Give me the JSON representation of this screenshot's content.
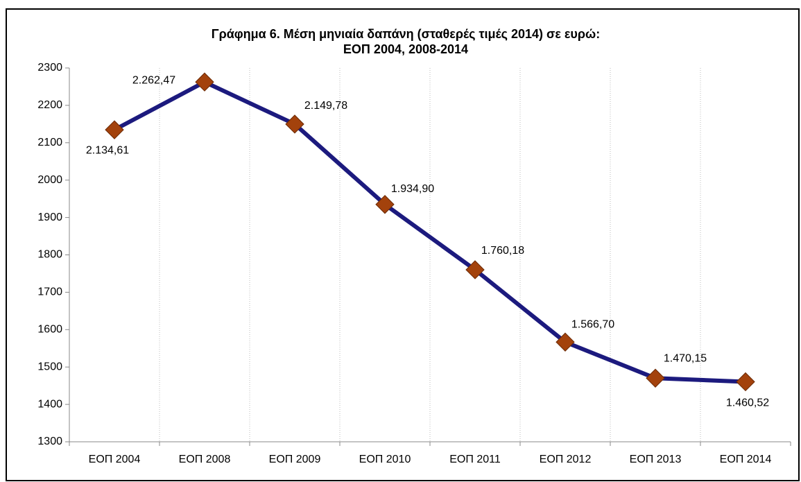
{
  "chart_data": {
    "type": "line",
    "title": [
      "Γράφημα 6. Μέση μηνιαία δαπάνη (σταθερές τιμές 2014) σε ευρώ:",
      "ΕΟΠ 2004, 2008-2014"
    ],
    "categories": [
      "ΕΟΠ 2004",
      "ΕΟΠ 2008",
      "ΕΟΠ 2009",
      "ΕΟΠ 2010",
      "ΕΟΠ 2011",
      "ΕΟΠ 2012",
      "ΕΟΠ 2013",
      "ΕΟΠ 2014"
    ],
    "values": [
      2134.61,
      2262.47,
      2149.78,
      1934.9,
      1760.18,
      1566.7,
      1470.15,
      1460.52
    ],
    "value_labels": [
      "2.134,61",
      "2.262,47",
      "2.149,78",
      "1.934,90",
      "1.760,18",
      "1.566,70",
      "1.470,15",
      "1.460,52"
    ],
    "color": "#1c1a7e",
    "marker_color": "#a3420c",
    "ylim": [
      1300,
      2300
    ],
    "yticks": [
      1300,
      1400,
      1500,
      1600,
      1700,
      1800,
      1900,
      2000,
      2100,
      2200,
      2300
    ],
    "grid": "x"
  }
}
